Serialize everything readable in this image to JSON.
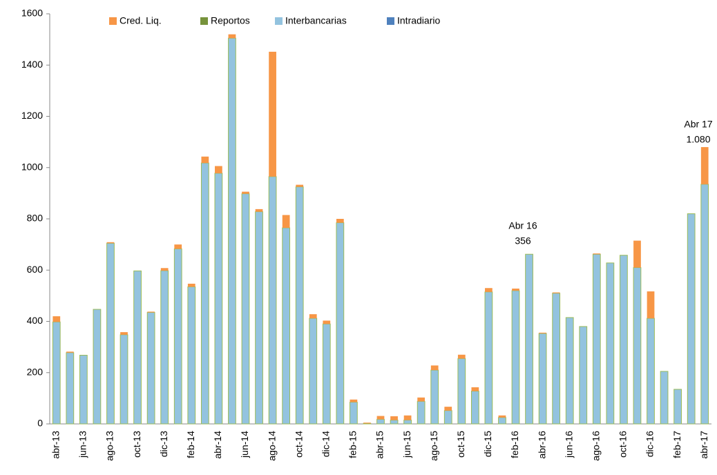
{
  "chart_data": {
    "type": "stacked_bar",
    "categories": [
      "abr-13",
      null,
      "jun-13",
      null,
      "ago-13",
      null,
      "oct-13",
      null,
      "dic-13",
      null,
      "feb-14",
      null,
      "abr-14",
      null,
      "jun-14",
      null,
      "ago-14",
      null,
      "oct-14",
      null,
      "dic-14",
      null,
      "feb-15",
      null,
      "abr-15",
      null,
      "jun-15",
      null,
      "ago-15",
      null,
      "oct-15",
      null,
      "dic-15",
      null,
      "feb-16",
      null,
      "abr-16",
      null,
      "jun-16",
      null,
      "ago-16",
      null,
      "oct-16",
      null,
      "dic-16",
      null,
      "feb-17",
      null,
      "abr-17"
    ],
    "series": [
      {
        "name": "Intradiario",
        "color": "#4f81bd",
        "values": [
          0,
          0,
          0,
          0,
          0,
          0,
          0,
          0,
          0,
          0,
          0,
          0,
          0,
          0,
          0,
          0,
          0,
          0,
          0,
          0,
          0,
          0,
          0,
          0,
          0,
          0,
          0,
          0,
          0,
          0,
          0,
          0,
          0,
          0,
          0,
          0,
          0,
          0,
          0,
          0,
          0,
          0,
          0,
          0,
          0,
          0,
          0,
          0,
          0
        ]
      },
      {
        "name": "Interbancarias",
        "color": "#93c3df",
        "values": [
          398,
          278,
          268,
          447,
          705,
          348,
          597,
          435,
          598,
          683,
          535,
          1018,
          978,
          1505,
          898,
          828,
          965,
          765,
          925,
          412,
          390,
          785,
          85,
          2,
          18,
          15,
          15,
          88,
          210,
          52,
          255,
          128,
          515,
          25,
          520,
          662,
          353,
          510,
          415,
          380,
          662,
          628,
          658,
          610,
          412,
          205,
          135,
          820,
          935
        ]
      },
      {
        "name": "Reportos",
        "color": "#77933c",
        "values": [
          0,
          0,
          0,
          0,
          0,
          0,
          0,
          0,
          0,
          0,
          0,
          0,
          0,
          0,
          0,
          0,
          0,
          0,
          0,
          0,
          0,
          0,
          0,
          0,
          0,
          0,
          0,
          0,
          0,
          0,
          0,
          0,
          0,
          0,
          0,
          0,
          0,
          0,
          0,
          0,
          0,
          0,
          0,
          0,
          0,
          0,
          0,
          0,
          0
        ]
      },
      {
        "name": "Cred. Liq.",
        "color": "#f79646",
        "values": [
          22,
          4,
          0,
          0,
          4,
          10,
          0,
          3,
          10,
          17,
          12,
          25,
          28,
          15,
          8,
          10,
          487,
          50,
          8,
          16,
          13,
          15,
          10,
          3,
          13,
          15,
          18,
          15,
          18,
          15,
          15,
          15,
          15,
          8,
          8,
          0,
          3,
          3,
          0,
          0,
          3,
          0,
          0,
          105,
          105,
          0,
          0,
          0,
          145
        ]
      }
    ],
    "ylim": [
      0,
      1600
    ],
    "yticks": [
      0,
      200,
      400,
      600,
      800,
      1000,
      1200,
      1400,
      1600
    ],
    "annotations": [
      {
        "lines": [
          "Abr 16",
          "356"
        ]
      },
      {
        "lines": [
          "Abr 17",
          "1.080"
        ]
      }
    ]
  }
}
